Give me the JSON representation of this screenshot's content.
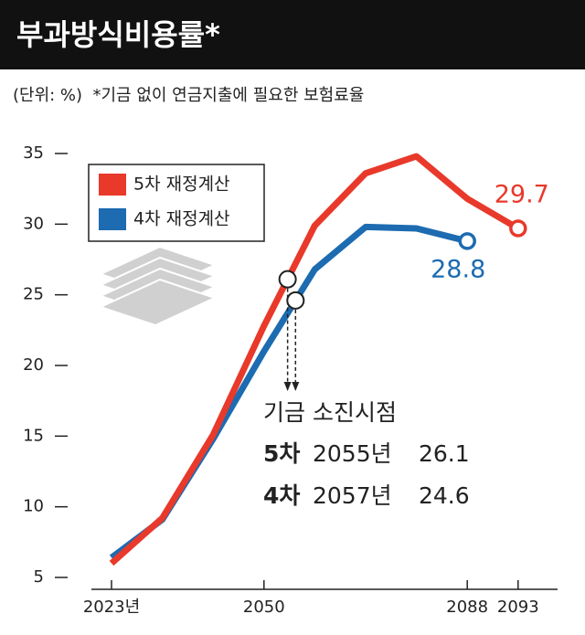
{
  "chart_data": {
    "type": "line",
    "title": "부과방식비용률*",
    "subtitle": "(단위: %)  *기금 없이 연금지출에 필요한 보험료율",
    "categories": [
      "2023년",
      null,
      null,
      "2050",
      null,
      null,
      null,
      "2088",
      "2093"
    ],
    "series": [
      {
        "name": "5차 재정계산",
        "color": "#e8392b",
        "values": [
          6.0,
          9.2,
          15.1,
          22.8,
          29.9,
          33.6,
          34.8,
          31.8,
          29.7
        ]
      },
      {
        "name": "4차 재정계산",
        "color": "#1d6bb0",
        "values": [
          6.4,
          9.1,
          14.8,
          21.0,
          26.8,
          29.8,
          29.7,
          28.8,
          null
        ]
      }
    ],
    "ylim": [
      5,
      35
    ],
    "yticks": [
      5,
      10,
      15,
      20,
      25,
      30,
      35
    ],
    "annotation_title": "기금 소진시점",
    "depletion": [
      {
        "round": "5차",
        "year": "2055년",
        "value": 26.1
      },
      {
        "round": "4차",
        "year": "2057년",
        "value": 24.6
      }
    ]
  }
}
